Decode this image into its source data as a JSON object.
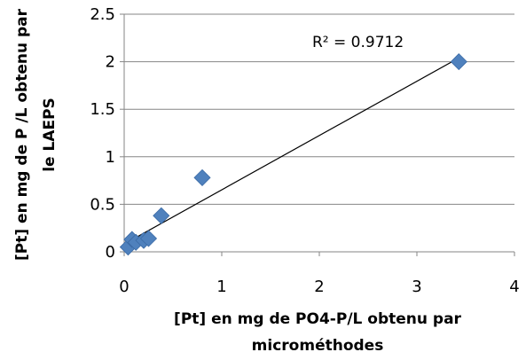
{
  "chart_data": {
    "type": "scatter",
    "xlabel_lines": [
      "[Pt] en mg de PO4-P/L obtenu par",
      "microméthodes"
    ],
    "ylabel_lines": [
      "[Pt] en mg de P /L obtenu par",
      "le LAEPS"
    ],
    "xlim": [
      0,
      4
    ],
    "ylim": [
      0,
      2.5
    ],
    "xticks": [
      "0",
      "1",
      "2",
      "3",
      "4"
    ],
    "yticks": [
      "0",
      "0.5",
      "1",
      "1.5",
      "2",
      "2.5"
    ],
    "grid": "horizontal",
    "legend": "none",
    "marker_color": "#4F81BD",
    "series": [
      {
        "x": [
          0.04,
          0.08,
          0.12,
          0.2,
          0.25,
          0.38,
          0.8,
          3.43
        ],
        "y": [
          0.05,
          0.13,
          0.1,
          0.12,
          0.14,
          0.38,
          0.78,
          2.0
        ]
      }
    ],
    "trendline": {
      "x": [
        0.05,
        3.43
      ],
      "y": [
        0.11,
        2.04
      ]
    },
    "annotation": "R² = 0.9712"
  }
}
